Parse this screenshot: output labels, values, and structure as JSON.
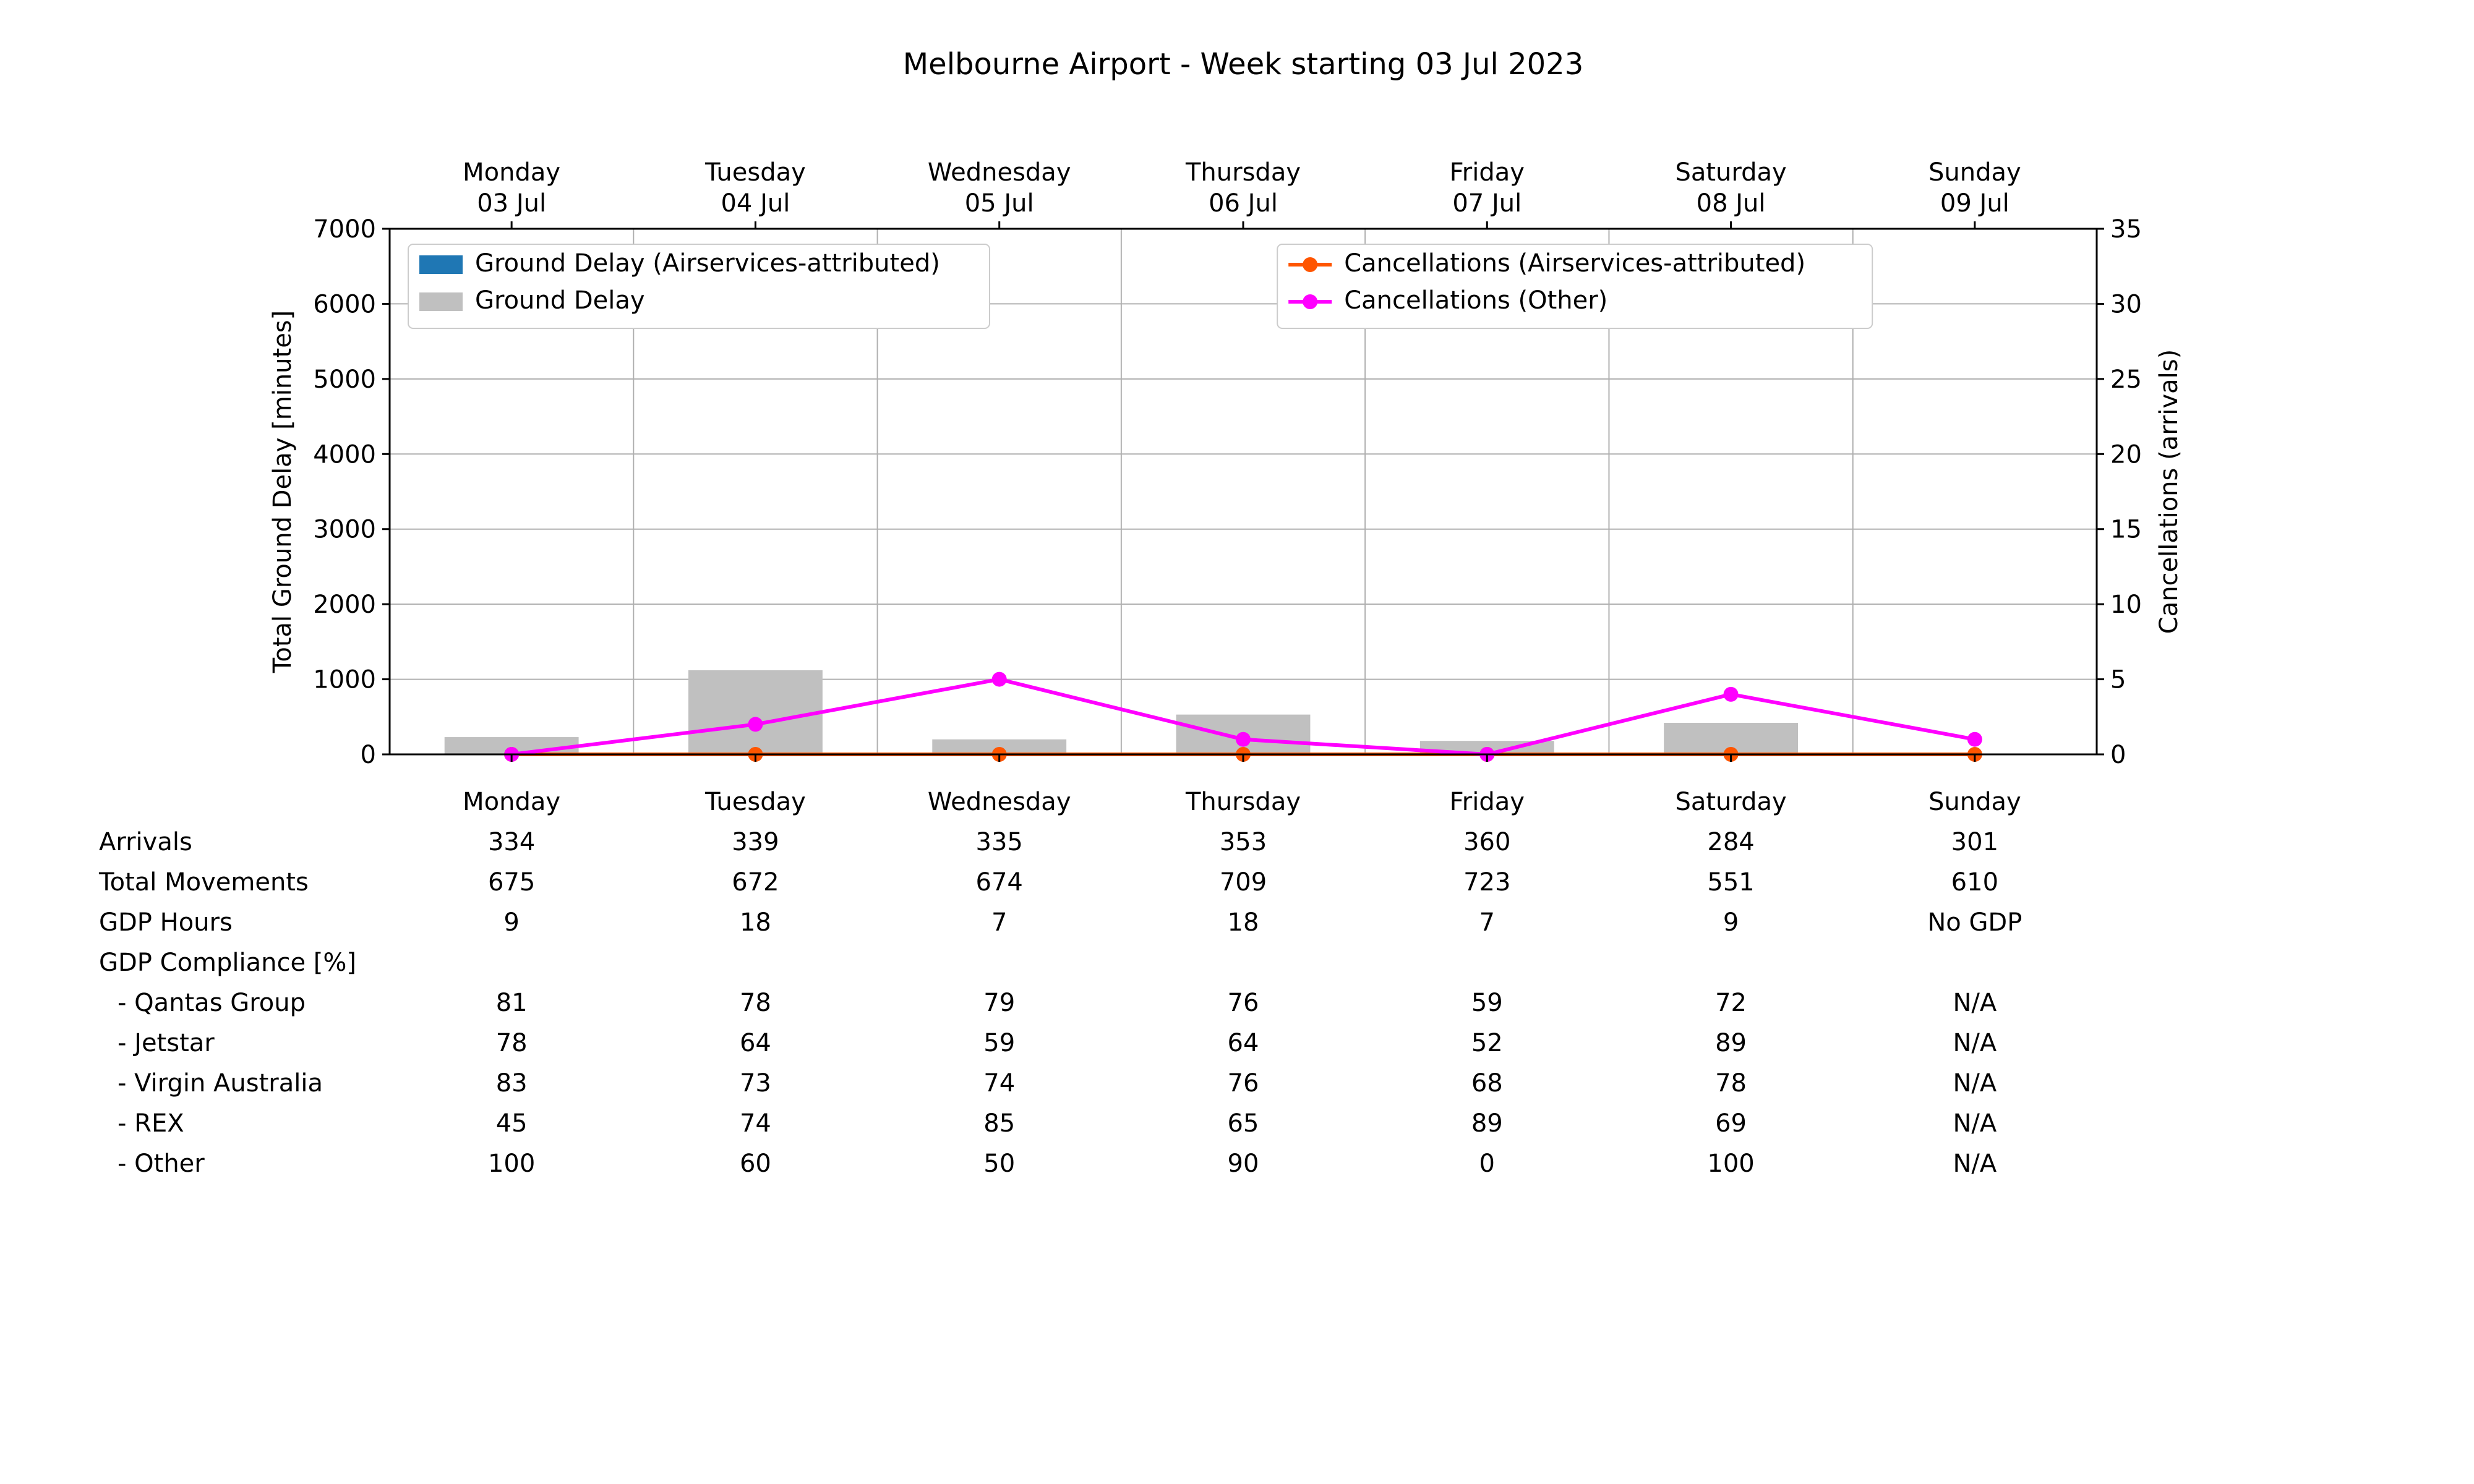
{
  "title": "Melbourne Airport - Week starting 03 Jul 2023",
  "title_fontsize": 48,
  "chart": {
    "type": "bar+line-dual-axis",
    "background_color": "#ffffff",
    "grid_color": "#b0b0b0",
    "axis_color": "#000000",
    "plot_border_color": "#000000",
    "font_family": "DejaVu Sans",
    "tick_fontsize": 40,
    "axis_label_fontsize": 40,
    "y_left": {
      "label": "Total Ground Delay [minutes]",
      "min": 0,
      "max": 7000,
      "tick_step": 1000,
      "ticks": [
        0,
        1000,
        2000,
        3000,
        4000,
        5000,
        6000,
        7000
      ]
    },
    "y_right": {
      "label": "Cancellations (arrivals)",
      "min": 0,
      "max": 35,
      "tick_step": 5,
      "ticks": [
        0,
        5,
        10,
        15,
        20,
        25,
        30,
        35
      ]
    },
    "x_top_labels": [
      [
        "Monday",
        "03 Jul"
      ],
      [
        "Tuesday",
        "04 Jul"
      ],
      [
        "Wednesday",
        "05 Jul"
      ],
      [
        "Thursday",
        "06 Jul"
      ],
      [
        "Friday",
        "07 Jul"
      ],
      [
        "Saturday",
        "08 Jul"
      ],
      [
        "Sunday",
        "09 Jul"
      ]
    ],
    "bars": {
      "ground_delay": {
        "label": "Ground Delay",
        "color": "#c0c0c0",
        "values": [
          230,
          1120,
          200,
          530,
          180,
          420,
          0
        ],
        "width": 0.55
      },
      "ground_delay_airservices": {
        "label": "Ground Delay (Airservices-attributed)",
        "color": "#1f77b4",
        "values": [
          0,
          0,
          0,
          0,
          0,
          0,
          0
        ],
        "width": 0.55
      }
    },
    "lines": {
      "cancellations_airservices": {
        "label": "Cancellations (Airservices-attributed)",
        "color": "#ff5500",
        "marker": "circle",
        "marker_size": 8,
        "line_width": 6,
        "values": [
          0,
          0,
          0,
          0,
          0,
          0,
          0
        ]
      },
      "cancellations_other": {
        "label": "Cancellations (Other)",
        "color": "#ff00ff",
        "marker": "circle",
        "marker_size": 8,
        "line_width": 6,
        "values": [
          0,
          2,
          5,
          1,
          0,
          4,
          1
        ]
      }
    },
    "legend": {
      "fontsize": 40,
      "border_color": "#cccccc",
      "background": "#ffffff",
      "left_items": [
        {
          "key": "ground_delay_airservices",
          "kind": "patch"
        },
        {
          "key": "ground_delay",
          "kind": "patch"
        }
      ],
      "right_items": [
        {
          "key": "cancellations_airservices",
          "kind": "line"
        },
        {
          "key": "cancellations_other",
          "kind": "line"
        }
      ]
    }
  },
  "table": {
    "font_size": 40,
    "columns": [
      "Monday",
      "Tuesday",
      "Wednesday",
      "Thursday",
      "Friday",
      "Saturday",
      "Sunday"
    ],
    "rows": [
      {
        "label": "Arrivals",
        "values": [
          "334",
          "339",
          "335",
          "353",
          "360",
          "284",
          "301"
        ],
        "indent": 0
      },
      {
        "label": "Total Movements",
        "values": [
          "675",
          "672",
          "674",
          "709",
          "723",
          "551",
          "610"
        ],
        "indent": 0
      },
      {
        "label": "GDP Hours",
        "values": [
          "9",
          "18",
          "7",
          "18",
          "7",
          "9",
          "No GDP"
        ],
        "indent": 0
      },
      {
        "label": "GDP Compliance [%]",
        "values": [
          "",
          "",
          "",
          "",
          "",
          "",
          ""
        ],
        "indent": 0
      },
      {
        "label": " - Qantas Group",
        "values": [
          "81",
          "78",
          "79",
          "76",
          "59",
          "72",
          "N/A"
        ],
        "indent": 1
      },
      {
        "label": " - Jetstar",
        "values": [
          "78",
          "64",
          "59",
          "64",
          "52",
          "89",
          "N/A"
        ],
        "indent": 1
      },
      {
        "label": " - Virgin Australia",
        "values": [
          "83",
          "73",
          "74",
          "76",
          "68",
          "78",
          "N/A"
        ],
        "indent": 1
      },
      {
        "label": " - REX",
        "values": [
          "45",
          "74",
          "85",
          "65",
          "89",
          "69",
          "N/A"
        ],
        "indent": 1
      },
      {
        "label": " - Other",
        "values": [
          "100",
          "60",
          "50",
          "90",
          "0",
          "100",
          "N/A"
        ],
        "indent": 1
      }
    ]
  }
}
